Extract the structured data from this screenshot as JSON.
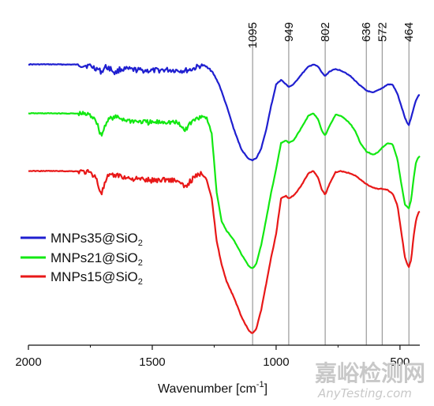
{
  "chart_data": {
    "type": "line",
    "title": "",
    "xlabel": "Wavenumber [cm",
    "xlabel_sup": "-1",
    "xlabel_end": "]",
    "ylabel": "",
    "xlim": [
      2000,
      420
    ],
    "x_reversed": true,
    "xticks": [
      2000,
      1500,
      1000,
      500
    ],
    "xtick_labels": [
      "2000",
      "1500",
      "1000",
      "500"
    ],
    "grid": false,
    "peak_lines": [
      1095,
      949,
      802,
      636,
      572,
      464
    ],
    "peak_labels": [
      "1095",
      "949",
      "802",
      "636",
      "572",
      "464"
    ],
    "legend_placement": "lower-left",
    "series": [
      {
        "name_base": "MNPs35@SiO",
        "name_sub": "2",
        "color": "#1f1fd0",
        "x": [
          2000,
          1900,
          1800,
          1750,
          1720,
          1705,
          1690,
          1670,
          1650,
          1630,
          1600,
          1550,
          1500,
          1450,
          1400,
          1370,
          1340,
          1300,
          1270,
          1250,
          1230,
          1200,
          1170,
          1140,
          1110,
          1095,
          1080,
          1060,
          1040,
          1020,
          1000,
          980,
          960,
          949,
          930,
          900,
          870,
          850,
          830,
          815,
          802,
          785,
          760,
          740,
          720,
          700,
          680,
          660,
          636,
          610,
          590,
          572,
          550,
          530,
          510,
          495,
          480,
          470,
          464,
          455,
          445,
          435,
          425,
          420
        ],
        "y": [
          0.5,
          0.5,
          0.6,
          1.2,
          2.5,
          3.8,
          1.6,
          2.2,
          4.2,
          2.5,
          2.6,
          3.0,
          3.2,
          2.8,
          3.0,
          3.2,
          2.6,
          0.8,
          2.0,
          5.0,
          9.0,
          18.0,
          28.0,
          36.5,
          40.5,
          41.0,
          40.0,
          36.0,
          28.0,
          18.0,
          9.0,
          7.0,
          9.0,
          10.0,
          9.0,
          5.0,
          1.5,
          0.5,
          1.5,
          4.0,
          5.5,
          3.5,
          2.5,
          3.0,
          4.0,
          5.5,
          7.5,
          9.5,
          11.5,
          12.5,
          11.5,
          10.5,
          9.0,
          9.0,
          13.0,
          18.0,
          23.0,
          25.5,
          26.0,
          23.0,
          19.0,
          15.5,
          13.5,
          13.5
        ]
      },
      {
        "name_base": "MNPs21@SiO",
        "name_sub": "2",
        "color": "#12e812",
        "x": [
          2000,
          1900,
          1800,
          1760,
          1730,
          1715,
          1705,
          1695,
          1680,
          1660,
          1640,
          1600,
          1550,
          1500,
          1450,
          1400,
          1380,
          1365,
          1350,
          1320,
          1300,
          1280,
          1260,
          1240,
          1220,
          1200,
          1170,
          1140,
          1110,
          1095,
          1080,
          1060,
          1040,
          1020,
          1000,
          980,
          960,
          949,
          930,
          900,
          870,
          850,
          830,
          815,
          802,
          785,
          760,
          740,
          720,
          700,
          680,
          660,
          636,
          610,
          590,
          572,
          550,
          530,
          510,
          495,
          480,
          470,
          464,
          455,
          445,
          435,
          425,
          420
        ],
        "y": [
          0.5,
          0.5,
          0.6,
          1.0,
          2.5,
          7.5,
          10.0,
          7.0,
          3.0,
          2.5,
          2.2,
          3.5,
          4.0,
          4.5,
          4.0,
          4.5,
          6.5,
          7.5,
          5.0,
          2.5,
          1.5,
          2.5,
          9.0,
          34.0,
          46.0,
          50.0,
          54.0,
          60.0,
          65.0,
          66.0,
          64.0,
          56.0,
          45.0,
          34.0,
          24.0,
          13.0,
          12.0,
          13.0,
          12.0,
          7.0,
          1.5,
          0.5,
          3.0,
          8.0,
          10.0,
          6.0,
          1.0,
          1.5,
          3.0,
          5.0,
          8.0,
          13.0,
          16.5,
          18.0,
          17.0,
          15.0,
          13.0,
          13.5,
          20.0,
          30.0,
          39.0,
          40.0,
          40.5,
          37.0,
          28.0,
          21.0,
          19.0,
          18.5
        ]
      },
      {
        "name_base": "MNPs15@SiO",
        "name_sub": "2",
        "color": "#e81818",
        "x": [
          2000,
          1900,
          1800,
          1760,
          1730,
          1715,
          1705,
          1695,
          1680,
          1660,
          1640,
          1600,
          1550,
          1500,
          1450,
          1400,
          1380,
          1365,
          1350,
          1320,
          1300,
          1280,
          1260,
          1240,
          1220,
          1200,
          1170,
          1140,
          1110,
          1095,
          1080,
          1060,
          1040,
          1020,
          1000,
          980,
          960,
          949,
          930,
          900,
          870,
          850,
          830,
          815,
          802,
          785,
          760,
          740,
          720,
          700,
          680,
          660,
          636,
          610,
          590,
          572,
          550,
          530,
          510,
          495,
          480,
          470,
          464,
          455,
          445,
          435,
          425,
          420
        ],
        "y": [
          0.5,
          0.5,
          0.6,
          1.0,
          2.5,
          7.5,
          10.0,
          7.0,
          3.0,
          2.5,
          2.2,
          3.5,
          4.0,
          4.5,
          4.0,
          4.5,
          6.5,
          7.5,
          5.0,
          2.5,
          1.5,
          4.0,
          12.0,
          30.0,
          40.0,
          47.0,
          54.0,
          62.0,
          68.0,
          69.0,
          67.0,
          59.0,
          48.0,
          37.0,
          27.0,
          12.0,
          11.0,
          12.0,
          11.0,
          7.0,
          1.5,
          0.5,
          3.5,
          8.5,
          10.5,
          6.0,
          1.0,
          0.5,
          1.0,
          1.5,
          2.5,
          4.0,
          6.0,
          7.5,
          8.0,
          8.0,
          8.5,
          10.0,
          15.0,
          26.0,
          37.0,
          40.0,
          41.0,
          38.0,
          28.0,
          21.0,
          18.0,
          17.5
        ]
      }
    ]
  },
  "watermark": {
    "cn": "嘉峪检测网",
    "en": "AnyTesting.com"
  }
}
